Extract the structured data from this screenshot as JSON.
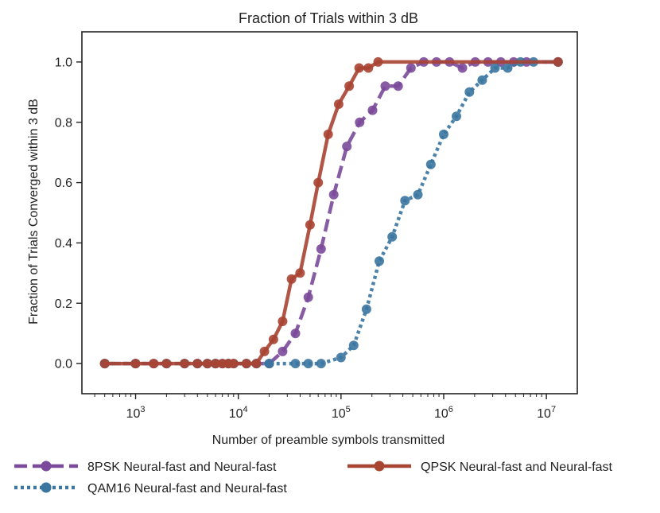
{
  "chart_data": {
    "type": "line",
    "title": "Fraction of Trials within 3 dB",
    "xlabel": "Number of preamble symbols transmitted",
    "ylabel": "Fraction of Trials Converged within 3 dB",
    "xscale": "log",
    "xlim": [
      300,
      20000000
    ],
    "ylim": [
      -0.1,
      1.1
    ],
    "xticks": [
      {
        "value": 1000,
        "base": "10",
        "exp": "3"
      },
      {
        "value": 10000,
        "base": "10",
        "exp": "4"
      },
      {
        "value": 100000,
        "base": "10",
        "exp": "5"
      },
      {
        "value": 1000000,
        "base": "10",
        "exp": "6"
      },
      {
        "value": 10000000,
        "base": "10",
        "exp": "7"
      }
    ],
    "yticks": [
      0.0,
      0.2,
      0.4,
      0.6,
      0.8,
      1.0
    ],
    "ytick_labels": [
      "0.0",
      "0.2",
      "0.4",
      "0.6",
      "0.8",
      "1.0"
    ],
    "grid": false,
    "legend_position": "bottom-outside",
    "series": [
      {
        "name": "8PSK Neural-fast and Neural-fast",
        "color": "#7b4a9a",
        "style": "dashed",
        "x": [
          500,
          1000,
          1500,
          2000,
          3000,
          4000,
          5000,
          6000,
          7000,
          8000,
          9000,
          12000,
          15000,
          20000,
          27000,
          36000,
          48000,
          64000,
          85000,
          114000,
          152000,
          203000,
          270000,
          360000,
          480000,
          640000,
          850000,
          1140000,
          1520000,
          2030000,
          2700000,
          3600000,
          4800000,
          6400000,
          13000000
        ],
        "y": [
          0.0,
          0.0,
          0.0,
          0.0,
          0.0,
          0.0,
          0.0,
          0.0,
          0.0,
          0.0,
          0.0,
          0.0,
          0.0,
          0.0,
          0.04,
          0.1,
          0.22,
          0.38,
          0.56,
          0.72,
          0.8,
          0.84,
          0.92,
          0.92,
          0.98,
          1.0,
          1.0,
          1.0,
          0.98,
          1.0,
          1.0,
          1.0,
          1.0,
          1.0,
          1.0
        ]
      },
      {
        "name": "QAM16 Neural-fast and Neural-fast",
        "color": "#3a76a0",
        "style": "dotted",
        "x": [
          500,
          1000,
          2000,
          3000,
          4000,
          5000,
          6000,
          8000,
          12000,
          15000,
          20000,
          36000,
          48000,
          64000,
          100000,
          133000,
          177000,
          236000,
          315000,
          420000,
          560000,
          750000,
          1000000,
          1330000,
          1780000,
          2370000,
          3160000,
          4200000,
          5600000,
          7500000,
          13000000
        ],
        "y": [
          0.0,
          0.0,
          0.0,
          0.0,
          0.0,
          0.0,
          0.0,
          0.0,
          0.0,
          0.0,
          0.0,
          0.0,
          0.0,
          0.0,
          0.02,
          0.06,
          0.18,
          0.34,
          0.42,
          0.54,
          0.56,
          0.66,
          0.76,
          0.82,
          0.9,
          0.94,
          0.98,
          0.98,
          1.0,
          1.0,
          1.0
        ]
      },
      {
        "name": "QPSK Neural-fast and Neural-fast",
        "color": "#a84432",
        "style": "solid",
        "x": [
          500,
          1000,
          1500,
          2000,
          3000,
          4000,
          5000,
          6000,
          7000,
          8000,
          9000,
          12000,
          15000,
          18000,
          22000,
          27000,
          33000,
          40000,
          50000,
          60000,
          75000,
          95000,
          120000,
          150000,
          185000,
          230000,
          13000000
        ],
        "y": [
          0.0,
          0.0,
          0.0,
          0.0,
          0.0,
          0.0,
          0.0,
          0.0,
          0.0,
          0.0,
          0.0,
          0.0,
          0.0,
          0.04,
          0.08,
          0.14,
          0.28,
          0.3,
          0.46,
          0.6,
          0.76,
          0.86,
          0.92,
          0.98,
          0.98,
          1.0,
          1.0
        ]
      }
    ]
  }
}
